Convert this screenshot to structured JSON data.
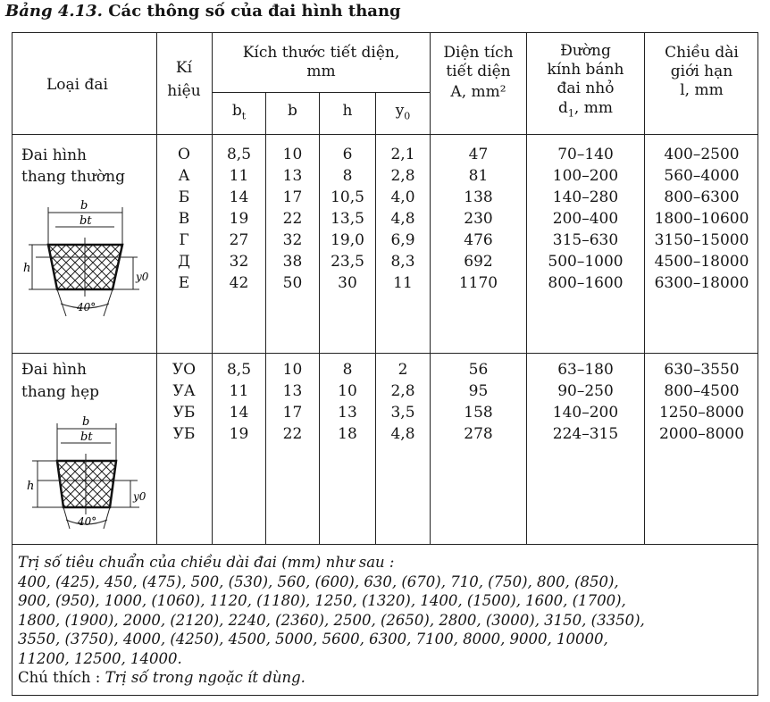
{
  "caption": {
    "label": "Bảng 4.13.",
    "title": "Các thông số của đai hình thang"
  },
  "headers": {
    "loai_dai": "Loại đai",
    "ki_hieu": [
      "Kí",
      "hiệu"
    ],
    "kich_thuoc": [
      "Kích thước tiết diện,",
      "mm"
    ],
    "sub": [
      "bt",
      "b",
      "h",
      "y0"
    ],
    "dien_tich": [
      "Diện tích",
      "tiết diện",
      "A, mm²"
    ],
    "duong_kinh": [
      "Đường",
      "kính bánh",
      "đai nhỏ",
      "d1, mm"
    ],
    "chieu_dai": [
      "Chiều dài",
      "giới hạn",
      "l, mm"
    ]
  },
  "groups": [
    {
      "name": [
        "Đai hình",
        "thang thường"
      ],
      "figure": {
        "b": "b",
        "bt": "bt",
        "h": "h",
        "y0": "y0",
        "angle": "40°"
      },
      "rows": [
        {
          "kh": "O",
          "bt": "8,5",
          "b": "10",
          "h": "6",
          "y0": "2,1",
          "A": "47",
          "d1": "70–140",
          "l": "400–2500"
        },
        {
          "kh": "A",
          "bt": "11",
          "b": "13",
          "h": "8",
          "y0": "2,8",
          "A": "81",
          "d1": "100–200",
          "l": "560–4000"
        },
        {
          "kh": "Б",
          "bt": "14",
          "b": "17",
          "h": "10,5",
          "y0": "4,0",
          "A": "138",
          "d1": "140–280",
          "l": "800–6300"
        },
        {
          "kh": "B",
          "bt": "19",
          "b": "22",
          "h": "13,5",
          "y0": "4,8",
          "A": "230",
          "d1": "200–400",
          "l": "1800–10600"
        },
        {
          "kh": "Г",
          "bt": "27",
          "b": "32",
          "h": "19,0",
          "y0": "6,9",
          "A": "476",
          "d1": "315–630",
          "l": "3150–15000"
        },
        {
          "kh": "Д",
          "bt": "32",
          "b": "38",
          "h": "23,5",
          "y0": "8,3",
          "A": "692",
          "d1": "500–1000",
          "l": "4500–18000"
        },
        {
          "kh": "E",
          "bt": "42",
          "b": "50",
          "h": "30",
          "y0": "11",
          "A": "1170",
          "d1": "800–1600",
          "l": "6300–18000"
        }
      ]
    },
    {
      "name": [
        "Đai hình",
        "thang hẹp"
      ],
      "figure": {
        "b": "b",
        "bt": "bt",
        "h": "h",
        "y0": "y0",
        "angle": "40°"
      },
      "rows": [
        {
          "kh": "УО",
          "bt": "8,5",
          "b": "10",
          "h": "8",
          "y0": "2",
          "A": "56",
          "d1": "63–180",
          "l": "630–3550"
        },
        {
          "kh": "УА",
          "bt": "11",
          "b": "13",
          "h": "10",
          "y0": "2,8",
          "A": "95",
          "d1": "90–250",
          "l": "800–4500"
        },
        {
          "kh": "УБ",
          "bt": "14",
          "b": "17",
          "h": "13",
          "y0": "3,5",
          "A": "158",
          "d1": "140–200",
          "l": "1250–8000"
        },
        {
          "kh": "УБ",
          "bt": "19",
          "b": "22",
          "h": "18",
          "y0": "4,8",
          "A": "278",
          "d1": "224–315",
          "l": "2000–8000"
        }
      ]
    }
  ],
  "footer": {
    "intro": "Trị số tiêu chuẩn của chiều dài đai (mm) như sau :",
    "lines": [
      "400, (425), 450, (475), 500, (530), 560, (600), 630, (670), 710, (750), 800, (850),",
      "900, (950), 1000, (1060), 1120, (1180), 1250, (1320), 1400, (1500), 1600, (1700),",
      "1800, (1900), 2000, (2120), 2240, (2360), 2500, (2650), 2800, (3000), 3150, (3350),",
      "3550, (3750), 4000, (4250), 4500, 5000, 5600, 6300, 7100, 8000, 9000, 10000,",
      "11200, 12500, 14000."
    ],
    "note_label": "Chú thích :",
    "note_text": "Trị số trong ngoặc ít dùng."
  }
}
